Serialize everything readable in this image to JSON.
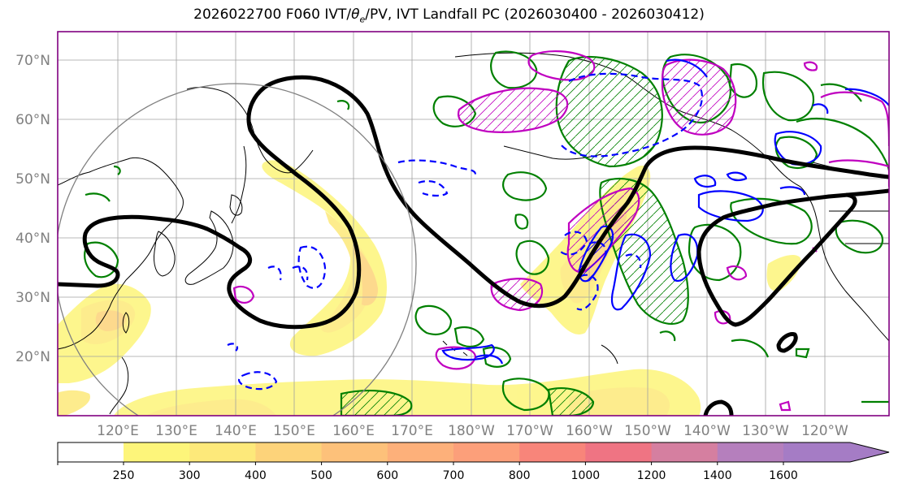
{
  "title": {
    "prefix": "2026022700 F060 IVT/",
    "theta": "θ",
    "theta_sub": "e",
    "suffix": "/PV, IVT Landfall PC (2026030400 - 2026030412)"
  },
  "map": {
    "lat_labels": [
      "70°N",
      "60°N",
      "50°N",
      "40°N",
      "30°N",
      "20°N"
    ],
    "lon_labels": [
      "120°E",
      "130°E",
      "140°E",
      "150°E",
      "160°E",
      "170°E",
      "180°W",
      "170°W",
      "160°W",
      "150°W",
      "140°W",
      "130°W",
      "120°W"
    ],
    "colors": {
      "pv_contour": "#000000",
      "theta_e_warm": "#008000",
      "theta_e_cold": "#0000ff",
      "magenta": "#c000c0",
      "circle": "#808080",
      "frame": "#800080"
    }
  },
  "colorbar": {
    "ticks": [
      "250",
      "300",
      "400",
      "500",
      "600",
      "700",
      "800",
      "1000",
      "1200",
      "1400",
      "1600"
    ],
    "colors": [
      "#fdf57a",
      "#fde97a",
      "#fdd37a",
      "#fdc17a",
      "#fdb07a",
      "#fc9f7a",
      "#f8857a",
      "#ef7483",
      "#d57fa0",
      "#b57fbd",
      "#a57cc5"
    ]
  }
}
